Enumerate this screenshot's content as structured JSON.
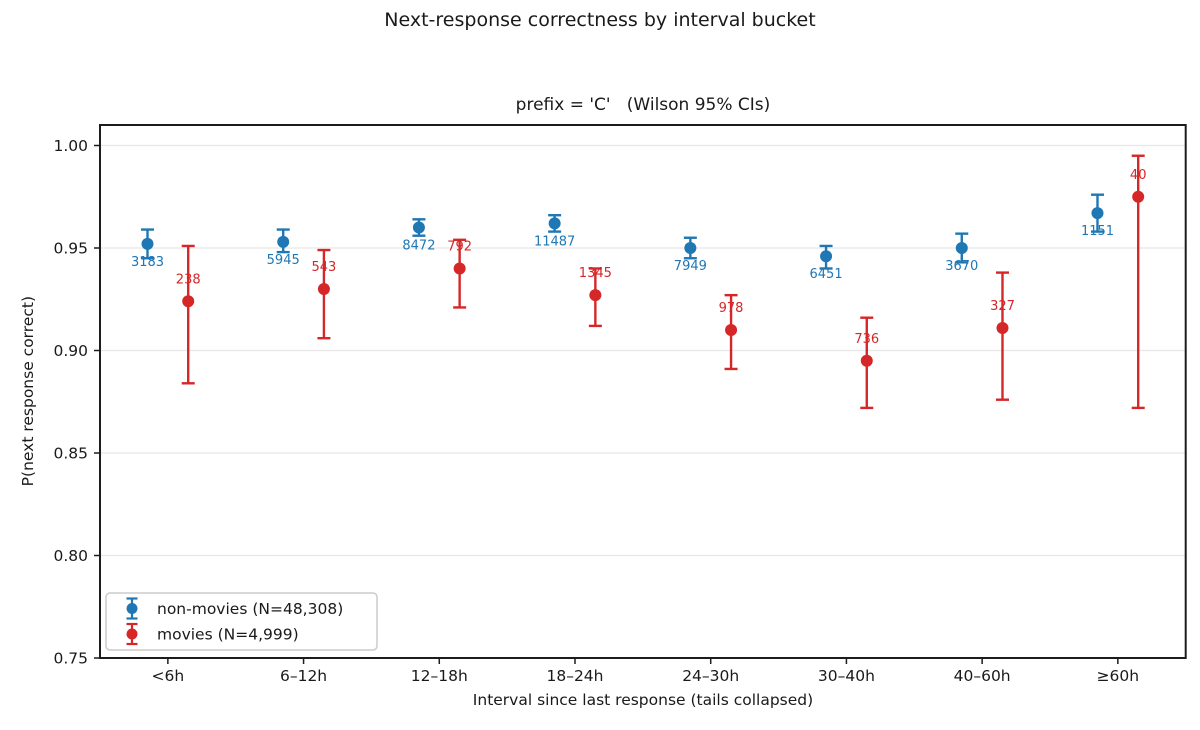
{
  "chart_data": {
    "type": "scatter",
    "subtype": "dot-with-errorbars",
    "title": "Next-response correctness by interval bucket",
    "subtitle": "prefix = 'C'   (Wilson 95% CIs)",
    "xlabel": "Interval since last response (tails collapsed)",
    "ylabel": "P(next response correct)",
    "categories": [
      "<6h",
      "6–12h",
      "12–18h",
      "18–24h",
      "24–30h",
      "30–40h",
      "40–60h",
      "≥60h"
    ],
    "ylim": [
      0.75,
      1.01
    ],
    "yticks": [
      0.75,
      0.8,
      0.85,
      0.9,
      0.95,
      1.0
    ],
    "ytick_labels": [
      "0.75",
      "0.80",
      "0.85",
      "0.90",
      "0.95",
      "1.00"
    ],
    "grid": "horizontal",
    "legend_position": "lower-left",
    "style": {
      "blue": "#1f77b4",
      "red": "#d62728",
      "grid_color": "#e7e7e7",
      "spine_color": "#1c1c1c",
      "text_color": "#1a1a1a",
      "legend_border": "#cccccc",
      "background": "#ffffff"
    },
    "series": [
      {
        "name": "non-movies (N=48,308)",
        "color": "#1f77b4",
        "dodge": -0.15,
        "label_side": "below",
        "n": [
          3183,
          5945,
          8472,
          11487,
          7949,
          6451,
          3670,
          1151
        ],
        "p": [
          0.952,
          0.953,
          0.96,
          0.962,
          0.95,
          0.946,
          0.95,
          0.967
        ],
        "ci_low": [
          0.945,
          0.948,
          0.956,
          0.958,
          0.945,
          0.94,
          0.943,
          0.958
        ],
        "ci_high": [
          0.959,
          0.959,
          0.964,
          0.966,
          0.955,
          0.951,
          0.957,
          0.976
        ]
      },
      {
        "name": "movies (N=4,999)",
        "color": "#d62728",
        "dodge": 0.15,
        "label_side": "above",
        "n": [
          238,
          543,
          792,
          1345,
          978,
          736,
          327,
          40
        ],
        "p": [
          0.924,
          0.93,
          0.94,
          0.927,
          0.91,
          0.895,
          0.911,
          0.975
        ],
        "ci_low": [
          0.884,
          0.906,
          0.921,
          0.912,
          0.891,
          0.872,
          0.876,
          0.872
        ],
        "ci_high": [
          0.951,
          0.949,
          0.954,
          0.94,
          0.927,
          0.916,
          0.938,
          0.995
        ]
      }
    ]
  }
}
